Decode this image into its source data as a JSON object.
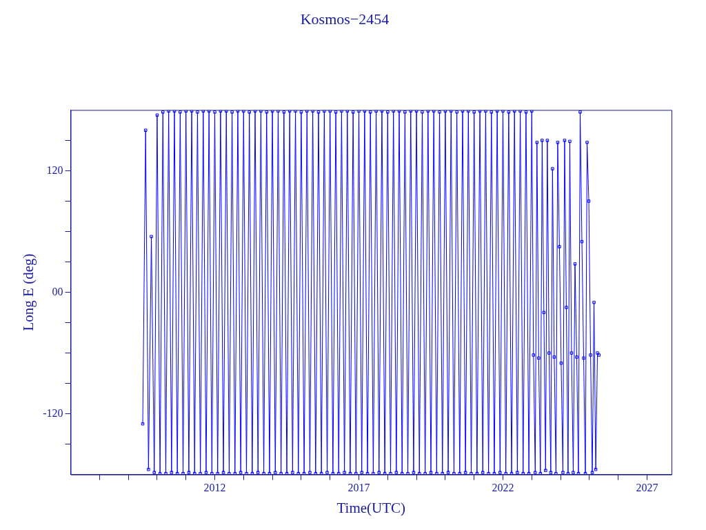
{
  "chart_data": {
    "type": "line",
    "title": "Kosmos−2454",
    "xlabel": "Time(UTC)",
    "ylabel": "Long E (deg)",
    "xlim": [
      2007,
      2027.85
    ],
    "xticks": [
      {
        "value": 2008,
        "label": null
      },
      {
        "value": 2009,
        "label": null
      },
      {
        "value": 2010,
        "label": null
      },
      {
        "value": 2011,
        "label": null
      },
      2012,
      {
        "value": 2013,
        "label": null
      },
      {
        "value": 2014,
        "label": null
      },
      {
        "value": 2015,
        "label": null
      },
      {
        "value": 2016,
        "label": null
      },
      2017,
      {
        "value": 2018,
        "label": null
      },
      {
        "value": 2019,
        "label": null
      },
      {
        "value": 2020,
        "label": null
      },
      {
        "value": 2021,
        "label": null
      },
      2022,
      {
        "value": 2023,
        "label": null
      },
      {
        "value": 2024,
        "label": null
      },
      {
        "value": 2025,
        "label": null
      },
      {
        "value": 2026,
        "label": null
      },
      2027
    ],
    "ylim": [
      -180,
      180
    ],
    "yticks": [
      {
        "value": -150,
        "label": null
      },
      -120,
      {
        "value": -90,
        "label": null
      },
      {
        "value": -60,
        "label": null
      },
      {
        "value": -30,
        "label": null
      },
      {
        "value": 0,
        "label": "00"
      },
      {
        "value": 30,
        "label": null
      },
      {
        "value": 60,
        "label": null
      },
      {
        "value": 90,
        "label": null
      },
      120,
      {
        "value": 150,
        "label": null
      }
    ],
    "marker": "square",
    "line_style": "solid",
    "legend": false,
    "series": [
      {
        "color": "#0000ff",
        "x": [
          2009.5,
          2009.6,
          2009.7,
          2009.8,
          2009.9,
          2010.0,
          2010.1,
          2010.2,
          2010.3,
          2010.4,
          2010.5,
          2010.6,
          2010.7,
          2010.8,
          2010.9,
          2011.0,
          2011.1,
          2011.2,
          2011.3,
          2011.4,
          2011.5,
          2011.6,
          2011.7,
          2011.8,
          2011.9,
          2012.0,
          2012.1,
          2012.2,
          2012.3,
          2012.4,
          2012.5,
          2012.6,
          2012.7,
          2012.8,
          2012.9,
          2013.0,
          2013.1,
          2013.2,
          2013.3,
          2013.4,
          2013.5,
          2013.6,
          2013.7,
          2013.8,
          2013.9,
          2014.0,
          2014.1,
          2014.2,
          2014.3,
          2014.4,
          2014.5,
          2014.6,
          2014.7,
          2014.8,
          2014.9,
          2015.0,
          2015.1,
          2015.2,
          2015.3,
          2015.4,
          2015.5,
          2015.6,
          2015.7,
          2015.8,
          2015.9,
          2016.0,
          2016.1,
          2016.2,
          2016.3,
          2016.4,
          2016.5,
          2016.6,
          2016.7,
          2016.8,
          2016.9,
          2017.0,
          2017.1,
          2017.2,
          2017.3,
          2017.4,
          2017.5,
          2017.6,
          2017.7,
          2017.8,
          2017.9,
          2018.0,
          2018.1,
          2018.2,
          2018.3,
          2018.4,
          2018.5,
          2018.6,
          2018.7,
          2018.8,
          2018.9,
          2019.0,
          2019.1,
          2019.2,
          2019.3,
          2019.4,
          2019.5,
          2019.6,
          2019.7,
          2019.8,
          2019.9,
          2020.0,
          2020.1,
          2020.2,
          2020.3,
          2020.4,
          2020.5,
          2020.6,
          2020.7,
          2020.8,
          2020.9,
          2021.0,
          2021.1,
          2021.2,
          2021.3,
          2021.4,
          2021.5,
          2021.6,
          2021.7,
          2021.8,
          2021.9,
          2022.0,
          2022.1,
          2022.2,
          2022.3,
          2022.4,
          2022.5,
          2022.6,
          2022.7,
          2022.8,
          2022.9,
          2023.0,
          2023.06,
          2023.12,
          2023.18,
          2023.24,
          2023.3,
          2023.36,
          2023.42,
          2023.48,
          2023.54,
          2023.6,
          2023.66,
          2023.72,
          2023.78,
          2023.84,
          2023.9,
          2023.96,
          2024.02,
          2024.08,
          2024.14,
          2024.2,
          2024.26,
          2024.32,
          2024.38,
          2024.44,
          2024.5,
          2024.56,
          2024.62,
          2024.68,
          2024.74,
          2024.8,
          2024.86,
          2024.92,
          2024.98,
          2025.04,
          2025.1,
          2025.16,
          2025.22,
          2025.28,
          2025.33
        ],
        "values": [
          -130,
          160,
          -175,
          55,
          -178,
          175,
          -179,
          178,
          -179,
          179,
          -178,
          179,
          -179,
          178,
          -179,
          179,
          -178,
          179,
          -179,
          178,
          -179,
          179,
          -178,
          179,
          -179,
          178,
          -179,
          179,
          -178,
          179,
          -179,
          178,
          -179,
          179,
          -178,
          179,
          -179,
          178,
          -179,
          179,
          -178,
          179,
          -179,
          178,
          -179,
          179,
          -178,
          179,
          -179,
          178,
          -179,
          179,
          -178,
          179,
          -179,
          178,
          -179,
          179,
          -178,
          179,
          -179,
          178,
          -179,
          179,
          -178,
          179,
          -179,
          178,
          -179,
          179,
          -178,
          179,
          -179,
          178,
          -179,
          179,
          -178,
          179,
          -179,
          178,
          -179,
          179,
          -178,
          179,
          -179,
          178,
          -179,
          179,
          -178,
          179,
          -179,
          178,
          -179,
          179,
          -178,
          179,
          -179,
          178,
          -179,
          179,
          -178,
          179,
          -179,
          178,
          -179,
          179,
          -178,
          179,
          -179,
          178,
          -179,
          179,
          -178,
          179,
          -179,
          178,
          -179,
          179,
          -178,
          179,
          -179,
          178,
          -179,
          179,
          -178,
          179,
          -179,
          178,
          -179,
          179,
          -178,
          179,
          -179,
          178,
          -179,
          179,
          -62,
          -178,
          148,
          -65,
          -179,
          150,
          -20,
          -176,
          150,
          -60,
          -178,
          122,
          -64,
          -179,
          148,
          45,
          -70,
          -178,
          150,
          -15,
          -179,
          149,
          -60,
          -178,
          28,
          -64,
          -179,
          178,
          50,
          -65,
          -179,
          148,
          90,
          -62,
          -178,
          -10,
          -175,
          -60,
          -62
        ]
      }
    ]
  }
}
